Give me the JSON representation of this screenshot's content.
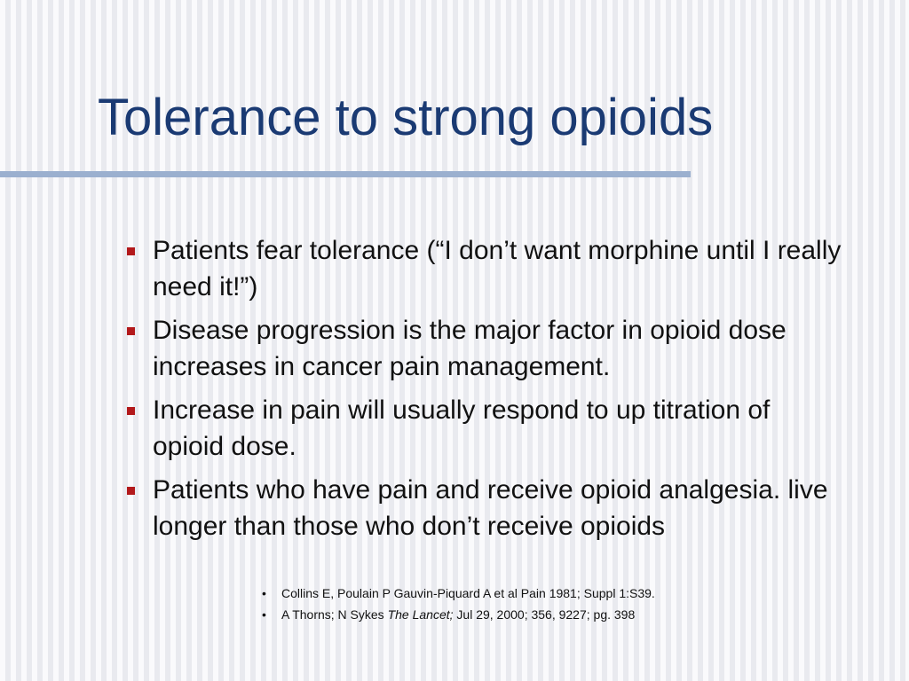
{
  "slide": {
    "title": "Tolerance to strong opioids",
    "bullets": [
      "Patients fear tolerance (“I don’t want morphine until I really need it!”)",
      "Disease progression is the major factor in opioid dose increases in cancer pain management.",
      "Increase in pain will usually respond to up titration of opioid dose.",
      "Patients who have pain and receive opioid analgesia. live longer than those who don’t receive opioids"
    ],
    "references": [
      {
        "marker": "•",
        "text": "Collins E, Poulain P Gauvin-Piquard A et al Pain 1981; Suppl 1:S39."
      },
      {
        "marker": "•",
        "text_before": "A Thorns; N Sykes ",
        "text_italic": "The Lancet;",
        "text_after": " Jul 29, 2000; 356, 9227; pg. 398"
      }
    ],
    "colors": {
      "title": "#1a3a73",
      "rule": "#9bb0cf",
      "bullet_marker": "#b3191b"
    }
  }
}
